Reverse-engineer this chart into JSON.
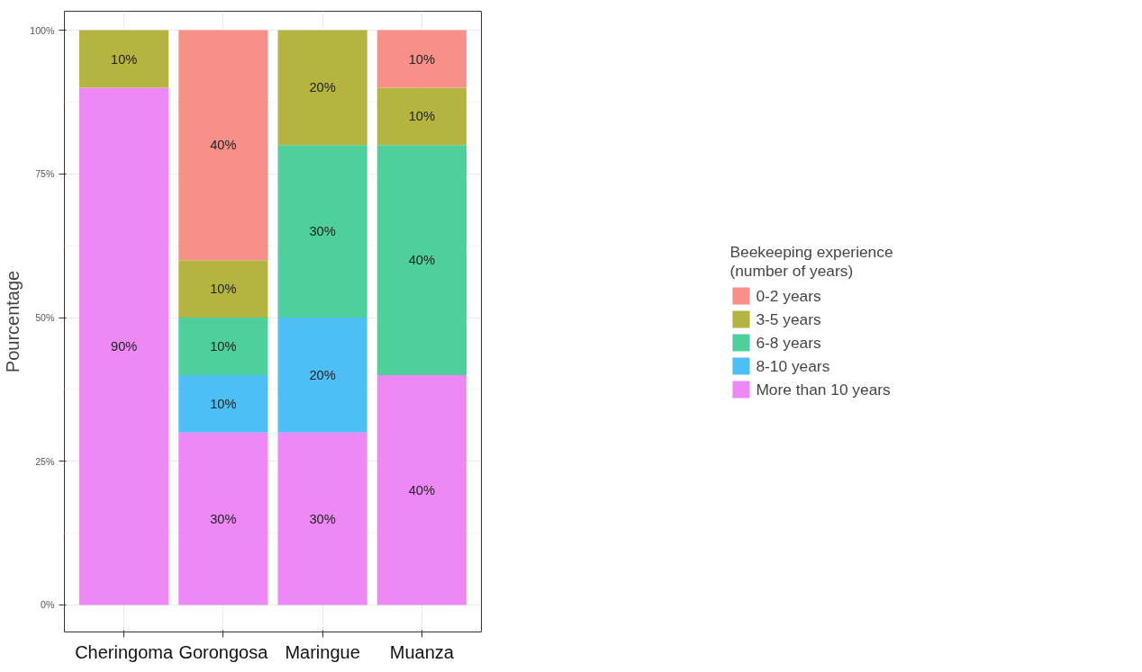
{
  "chart_data": {
    "type": "bar",
    "stacked": true,
    "ylabel": "Pourcentage",
    "legend_title": "Beekeeping experience\n(number of years)",
    "legend": "right",
    "grid": true,
    "categories": [
      "Cheringoma",
      "Gorongosa",
      "Maringue",
      "Muanza"
    ],
    "ylim": [
      -4.7,
      103.3
    ],
    "yticks": [
      {
        "value": 0,
        "label": "0%"
      },
      {
        "value": 25,
        "label": "25%"
      },
      {
        "value": 50,
        "label": "50%"
      },
      {
        "value": 75,
        "label": "75%"
      },
      {
        "value": 100,
        "label": "100%"
      }
    ],
    "series": [
      {
        "name": "More than 10 years",
        "color": "#ed88f5",
        "values": [
          90,
          30,
          30,
          40
        ],
        "value_labels": [
          "90%",
          "30%",
          "30%",
          "40%"
        ]
      },
      {
        "name": "8-10 years",
        "color": "#4dbff5",
        "values": [
          null,
          10,
          20,
          null
        ],
        "value_labels": [
          null,
          "10%",
          "20%",
          null
        ]
      },
      {
        "name": "6-8 years",
        "color": "#4ecf9b",
        "values": [
          null,
          10,
          30,
          40
        ],
        "value_labels": [
          null,
          "10%",
          "30%",
          "40%"
        ]
      },
      {
        "name": "3-5 years",
        "color": "#b5b440",
        "values": [
          10,
          10,
          20,
          10
        ],
        "value_labels": [
          "10%",
          "10%",
          "20%",
          "10%"
        ]
      },
      {
        "name": "0-2 years",
        "color": "#f8908a",
        "values": [
          null,
          40,
          null,
          10
        ],
        "value_labels": [
          null,
          "40%",
          null,
          "10%"
        ]
      }
    ]
  }
}
